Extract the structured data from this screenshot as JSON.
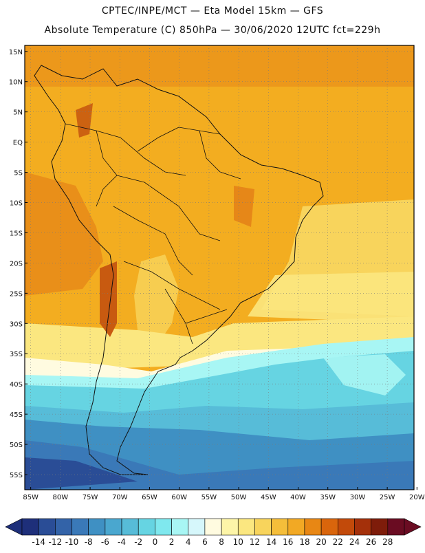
{
  "header": {
    "line1": "CPTEC/INPE/MCT —  Eta Model 15km — GFS",
    "line2": "Absolute Temperature (C) 850hPa — 30/06/2020 12UTC fct=229h"
  },
  "map": {
    "lat_labels": [
      "15N",
      "10N",
      "5N",
      "EQ",
      "5S",
      "10S",
      "15S",
      "20S",
      "25S",
      "30S",
      "35S",
      "40S",
      "45S",
      "50S",
      "55S"
    ],
    "lon_labels": [
      "85W",
      "80W",
      "75W",
      "70W",
      "65W",
      "60W",
      "55W",
      "50W",
      "45W",
      "40W",
      "35W",
      "30W",
      "25W",
      "20W"
    ],
    "lat_range": [
      16,
      -57.5
    ],
    "lon_range": [
      -86,
      -20.5
    ]
  },
  "colorbar": {
    "labels": [
      "-14",
      "-12",
      "-10",
      "-8",
      "-6",
      "-4",
      "-2",
      "0",
      "2",
      "4",
      "6",
      "8",
      "10",
      "12",
      "14",
      "16",
      "18",
      "20",
      "22",
      "24",
      "26",
      "28"
    ],
    "colors": [
      "#1e2f7a",
      "#2a4d96",
      "#3363a8",
      "#3a79b8",
      "#3f90c3",
      "#4aa7cf",
      "#57bcd8",
      "#66d4e2",
      "#7fe8ee",
      "#a8f6f4",
      "#d6f7fb",
      "#fffbe0",
      "#fdf5a8",
      "#fbe780",
      "#f8d45c",
      "#f5be3a",
      "#f2a924",
      "#e88714",
      "#d9650c",
      "#c24a0a",
      "#a4300a",
      "#7e1c0a",
      "#6a0c22"
    ]
  },
  "colors": {
    "warm": "#f3ad20",
    "hot": "#e68718",
    "hottest": "#c85a10",
    "mild": "#f8d45c",
    "cool_pale": "#fffbe0",
    "cyan_light": "#a8f6f4",
    "cyan": "#66d4e2",
    "blue": "#3f90c3",
    "deep_blue": "#2a4d96"
  }
}
